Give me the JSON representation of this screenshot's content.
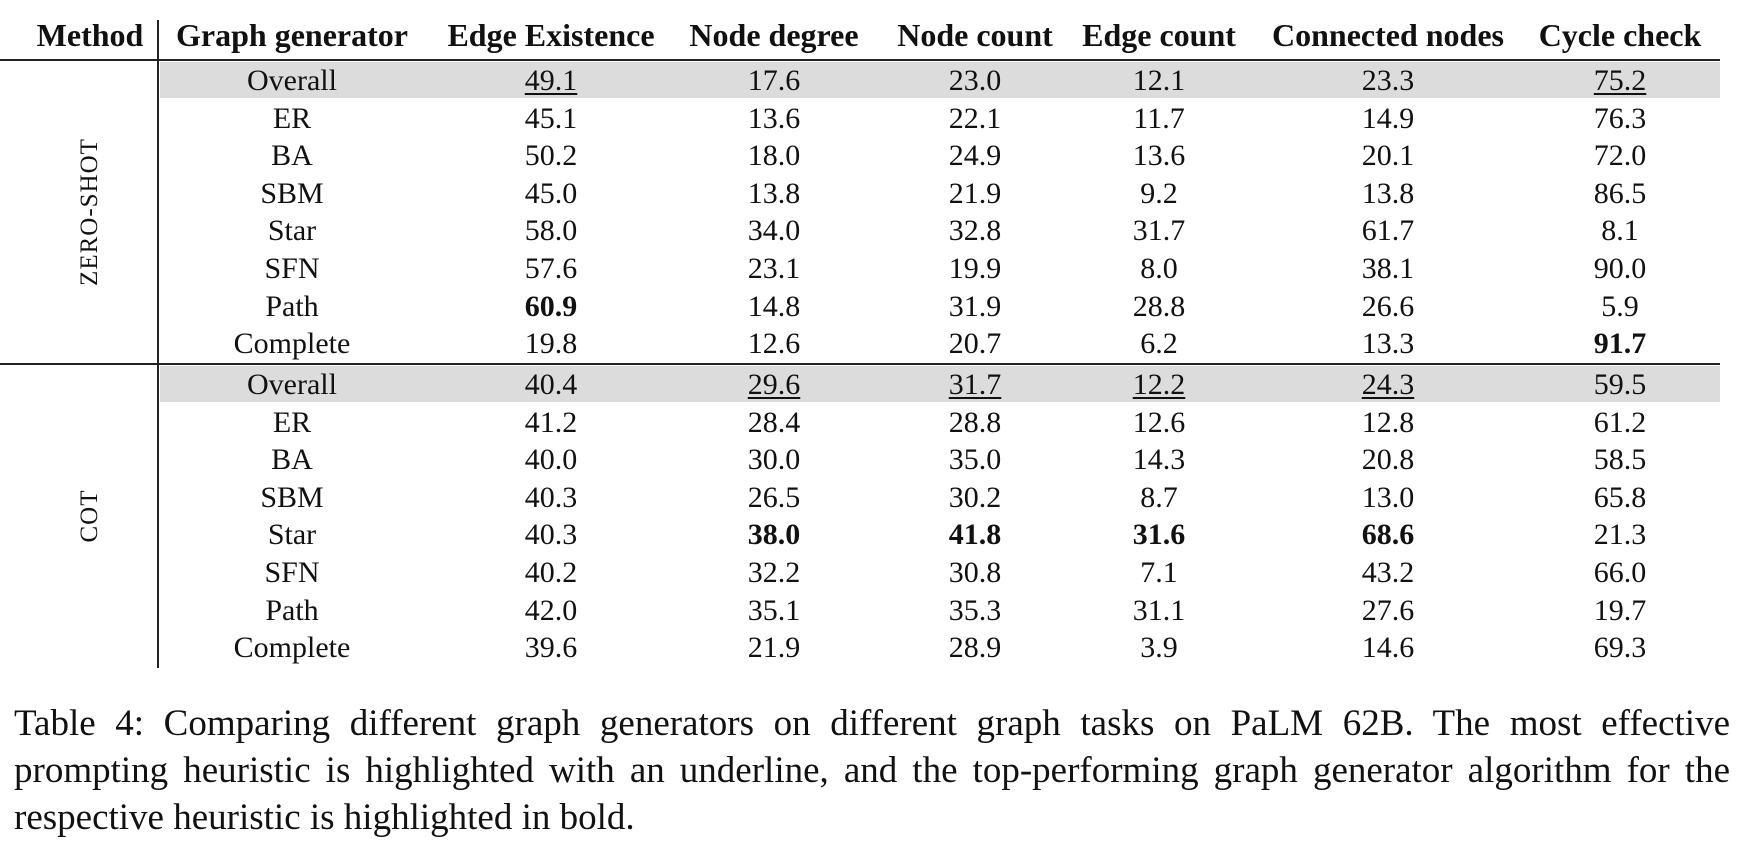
{
  "table": {
    "columns": [
      "Method",
      "Graph generator",
      "Edge Existence",
      "Node degree",
      "Node count",
      "Edge count",
      "Connected nodes",
      "Cycle check"
    ],
    "groups": [
      {
        "method": "ZERO-SHOT",
        "rows": [
          {
            "generator": "Overall",
            "values": [
              "49.1",
              "17.6",
              "23.0",
              "12.1",
              "23.3",
              "75.2"
            ],
            "underline": [
              0,
              5
            ],
            "bold": []
          },
          {
            "generator": "ER",
            "values": [
              "45.1",
              "13.6",
              "22.1",
              "11.7",
              "14.9",
              "76.3"
            ],
            "underline": [],
            "bold": []
          },
          {
            "generator": "BA",
            "values": [
              "50.2",
              "18.0",
              "24.9",
              "13.6",
              "20.1",
              "72.0"
            ],
            "underline": [],
            "bold": []
          },
          {
            "generator": "SBM",
            "values": [
              "45.0",
              "13.8",
              "21.9",
              "9.2",
              "13.8",
              "86.5"
            ],
            "underline": [],
            "bold": []
          },
          {
            "generator": "Star",
            "values": [
              "58.0",
              "34.0",
              "32.8",
              "31.7",
              "61.7",
              "8.1"
            ],
            "underline": [],
            "bold": []
          },
          {
            "generator": "SFN",
            "values": [
              "57.6",
              "23.1",
              "19.9",
              "8.0",
              "38.1",
              "90.0"
            ],
            "underline": [],
            "bold": []
          },
          {
            "generator": "Path",
            "values": [
              "60.9",
              "14.8",
              "31.9",
              "28.8",
              "26.6",
              "5.9"
            ],
            "underline": [],
            "bold": [
              0
            ]
          },
          {
            "generator": "Complete",
            "values": [
              "19.8",
              "12.6",
              "20.7",
              "6.2",
              "13.3",
              "91.7"
            ],
            "underline": [],
            "bold": [
              5
            ]
          }
        ]
      },
      {
        "method": "COT",
        "rows": [
          {
            "generator": "Overall",
            "values": [
              "40.4",
              "29.6",
              "31.7",
              "12.2",
              "24.3",
              "59.5"
            ],
            "underline": [
              1,
              2,
              3,
              4
            ],
            "bold": []
          },
          {
            "generator": "ER",
            "values": [
              "41.2",
              "28.4",
              "28.8",
              "12.6",
              "12.8",
              "61.2"
            ],
            "underline": [],
            "bold": []
          },
          {
            "generator": "BA",
            "values": [
              "40.0",
              "30.0",
              "35.0",
              "14.3",
              "20.8",
              "58.5"
            ],
            "underline": [],
            "bold": []
          },
          {
            "generator": "SBM",
            "values": [
              "40.3",
              "26.5",
              "30.2",
              "8.7",
              "13.0",
              "65.8"
            ],
            "underline": [],
            "bold": []
          },
          {
            "generator": "Star",
            "values": [
              "40.3",
              "38.0",
              "41.8",
              "31.6",
              "68.6",
              "21.3"
            ],
            "underline": [],
            "bold": [
              1,
              2,
              3,
              4
            ]
          },
          {
            "generator": "SFN",
            "values": [
              "40.2",
              "32.2",
              "30.8",
              "7.1",
              "43.2",
              "66.0"
            ],
            "underline": [],
            "bold": []
          },
          {
            "generator": "Path",
            "values": [
              "42.0",
              "35.1",
              "35.3",
              "31.1",
              "27.6",
              "19.7"
            ],
            "underline": [],
            "bold": []
          },
          {
            "generator": "Complete",
            "values": [
              "39.6",
              "21.9",
              "28.9",
              "3.9",
              "14.6",
              "69.3"
            ],
            "underline": [],
            "bold": []
          }
        ]
      }
    ]
  },
  "caption": "Table 4: Comparing different graph generators on different graph tasks on PaLM 62B. The most effective prompting heuristic is highlighted with an underline, and the top-performing graph generator algorithm for the respective heuristic is highlighted in bold."
}
